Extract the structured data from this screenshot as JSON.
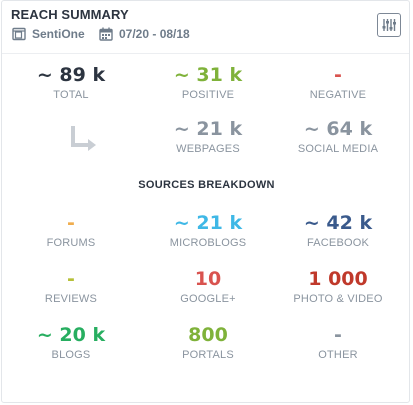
{
  "header": {
    "title": "REACH SUMMARY",
    "source": "SentiOne",
    "date_range": "07/20 - 08/18",
    "settings_icon": "sliders-icon"
  },
  "colors": {
    "dark": "#2c3440",
    "green": "#7fb23a",
    "red": "#d9534f",
    "gray": "#8a949f",
    "orange": "#f0ad4e",
    "cyan": "#3fb8e6",
    "navy": "#3a5a8c",
    "olive": "#b6c038",
    "google_red": "#d9534f",
    "photo_red": "#c0392b",
    "blogs_green": "#27ae60",
    "portals_green": "#7fb23a",
    "other_gray": "#8a949f"
  },
  "summary": {
    "total": {
      "value": "~ 89 k",
      "label": "TOTAL"
    },
    "positive": {
      "value": "~ 31 k",
      "label": "POSITIVE"
    },
    "negative": {
      "value": "-",
      "label": "NEGATIVE"
    },
    "webpages": {
      "value": "~ 21 k",
      "label": "WEBPAGES"
    },
    "social_media": {
      "value": "~ 64 k",
      "label": "SOCIAL MEDIA"
    }
  },
  "sources_breakdown": {
    "title": "SOURCES BREAKDOWN",
    "forums": {
      "value": "-",
      "label": "FORUMS"
    },
    "microblogs": {
      "value": "~ 21 k",
      "label": "MICROBLOGS"
    },
    "facebook": {
      "value": "~ 42 k",
      "label": "FACEBOOK"
    },
    "reviews": {
      "value": "-",
      "label": "REVIEWS"
    },
    "google_plus": {
      "value": "10",
      "label": "GOOGLE+"
    },
    "photo_video": {
      "value": "1 000",
      "label": "PHOTO & VIDEO"
    },
    "blogs": {
      "value": "~ 20 k",
      "label": "BLOGS"
    },
    "portals": {
      "value": "800",
      "label": "PORTALS"
    },
    "other": {
      "value": "-",
      "label": "OTHER"
    }
  }
}
